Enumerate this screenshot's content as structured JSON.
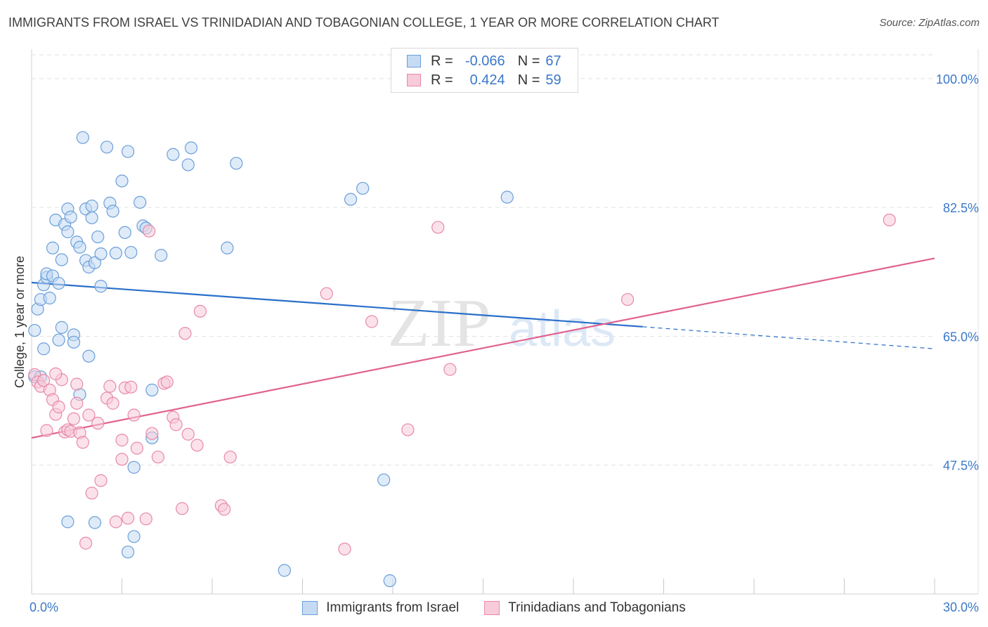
{
  "title": "IMMIGRANTS FROM ISRAEL VS TRINIDADIAN AND TOBAGONIAN COLLEGE, 1 YEAR OR MORE CORRELATION CHART",
  "source": "Source: ZipAtlas.com",
  "watermark": {
    "zip": "ZIP",
    "atlas": "atlas"
  },
  "colors": {
    "blue": "#6b9fd8",
    "blue_fill": "#c5dbf4",
    "blue_line": "#2a6fc9",
    "pink": "#e889a8",
    "pink_fill": "#f7cbd9",
    "pink_line": "#e0628f",
    "tick_label": "#3b78c8",
    "grid": "#e2e2e2"
  },
  "legend_top": [
    {
      "r_label": "R =",
      "r_value": "-0.066",
      "n_label": "N =",
      "n_value": "67"
    },
    {
      "r_label": "R =",
      "r_value": "0.424",
      "n_label": "N =",
      "n_value": "59"
    }
  ],
  "chart_data": {
    "type": "scatter",
    "title": "IMMIGRANTS FROM ISRAEL VS TRINIDADIAN AND TOBAGONIAN COLLEGE, 1 YEAR OR MORE CORRELATION CHART",
    "xlabel": "",
    "ylabel": "College, 1 year or more",
    "xlim": [
      0,
      30
    ],
    "ylim": [
      30,
      104
    ],
    "x_tick_labels": [
      {
        "value": 0,
        "label": "0.0%"
      },
      {
        "value": 30,
        "label": "30.0%"
      }
    ],
    "y_tick_labels": [
      {
        "value": 100,
        "label": "100.0%"
      },
      {
        "value": 82.5,
        "label": "82.5%"
      },
      {
        "value": 65,
        "label": "65.0%"
      },
      {
        "value": 47.5,
        "label": "47.5%"
      }
    ],
    "x_minor_ticks": [
      0,
      3,
      6,
      9,
      12,
      15,
      18,
      21,
      24,
      27,
      30
    ],
    "grid": true,
    "legend_position": "bottom",
    "series": [
      {
        "name": "Immigrants from Israel",
        "color": "#6b9fd8",
        "trend": {
          "x": [
            0,
            20.3
          ],
          "y": [
            72.3,
            66.3
          ],
          "extend_to": 30,
          "extend_y": 63.3
        },
        "points": [
          [
            0.1,
            59.5
          ],
          [
            0.1,
            65.8
          ],
          [
            0.2,
            68.7
          ],
          [
            0.3,
            70.0
          ],
          [
            0.4,
            63.3
          ],
          [
            0.4,
            72.0
          ],
          [
            0.5,
            73.0
          ],
          [
            0.5,
            73.5
          ],
          [
            0.6,
            70.2
          ],
          [
            0.7,
            73.2
          ],
          [
            0.7,
            77.0
          ],
          [
            0.8,
            80.8
          ],
          [
            0.9,
            72.2
          ],
          [
            0.9,
            64.5
          ],
          [
            1.0,
            66.2
          ],
          [
            1.0,
            75.4
          ],
          [
            1.1,
            80.2
          ],
          [
            1.2,
            79.2
          ],
          [
            1.2,
            82.3
          ],
          [
            1.3,
            81.2
          ],
          [
            1.4,
            65.2
          ],
          [
            1.4,
            64.2
          ],
          [
            1.5,
            77.8
          ],
          [
            1.6,
            77.1
          ],
          [
            1.6,
            57.1
          ],
          [
            1.7,
            92.0
          ],
          [
            1.8,
            82.3
          ],
          [
            1.8,
            75.3
          ],
          [
            1.9,
            74.4
          ],
          [
            1.9,
            62.3
          ],
          [
            2.0,
            81.1
          ],
          [
            2.0,
            82.7
          ],
          [
            2.1,
            75.0
          ],
          [
            2.2,
            78.5
          ],
          [
            2.3,
            76.2
          ],
          [
            2.3,
            71.8
          ],
          [
            2.5,
            90.7
          ],
          [
            2.6,
            83.1
          ],
          [
            2.7,
            82.0
          ],
          [
            2.8,
            76.3
          ],
          [
            3.0,
            86.1
          ],
          [
            3.1,
            79.1
          ],
          [
            3.2,
            90.1
          ],
          [
            3.3,
            76.4
          ],
          [
            3.6,
            83.2
          ],
          [
            3.7,
            80.0
          ],
          [
            3.8,
            79.7
          ],
          [
            4.0,
            57.7
          ],
          [
            4.0,
            51.2
          ],
          [
            4.3,
            76.0
          ],
          [
            4.7,
            89.7
          ],
          [
            5.2,
            88.3
          ],
          [
            5.3,
            90.6
          ],
          [
            6.5,
            77.0
          ],
          [
            6.8,
            88.5
          ],
          [
            10.6,
            83.6
          ],
          [
            11.0,
            85.1
          ],
          [
            15.8,
            83.9
          ],
          [
            3.4,
            47.2
          ],
          [
            11.7,
            45.5
          ],
          [
            1.2,
            39.8
          ],
          [
            2.1,
            39.7
          ],
          [
            3.4,
            37.8
          ],
          [
            3.2,
            35.7
          ],
          [
            8.4,
            33.2
          ],
          [
            11.9,
            31.8
          ],
          [
            0.3,
            59.5
          ]
        ]
      },
      {
        "name": "Trinidadians and Tobagonians",
        "color": "#e889a8",
        "trend": {
          "x": [
            0,
            30
          ],
          "y": [
            51.2,
            75.6
          ]
        },
        "points": [
          [
            0.1,
            59.8
          ],
          [
            0.2,
            58.8
          ],
          [
            0.3,
            58.2
          ],
          [
            0.4,
            59.0
          ],
          [
            0.5,
            52.2
          ],
          [
            0.6,
            57.7
          ],
          [
            0.7,
            56.4
          ],
          [
            0.8,
            54.4
          ],
          [
            0.9,
            55.4
          ],
          [
            1.0,
            59.1
          ],
          [
            1.1,
            52.0
          ],
          [
            1.2,
            52.3
          ],
          [
            1.3,
            52.1
          ],
          [
            1.4,
            53.8
          ],
          [
            1.5,
            55.9
          ],
          [
            1.6,
            51.9
          ],
          [
            1.7,
            50.6
          ],
          [
            1.8,
            36.9
          ],
          [
            1.9,
            54.3
          ],
          [
            2.0,
            43.7
          ],
          [
            2.2,
            53.2
          ],
          [
            2.3,
            45.4
          ],
          [
            2.5,
            56.6
          ],
          [
            2.6,
            58.2
          ],
          [
            2.7,
            55.9
          ],
          [
            2.8,
            39.8
          ],
          [
            3.0,
            48.3
          ],
          [
            3.0,
            50.9
          ],
          [
            3.1,
            58.0
          ],
          [
            3.2,
            40.3
          ],
          [
            3.3,
            58.1
          ],
          [
            3.4,
            54.3
          ],
          [
            3.5,
            49.8
          ],
          [
            3.8,
            40.2
          ],
          [
            3.9,
            79.3
          ],
          [
            4.0,
            51.8
          ],
          [
            4.2,
            48.6
          ],
          [
            4.4,
            58.6
          ],
          [
            4.5,
            58.8
          ],
          [
            4.7,
            54.0
          ],
          [
            4.8,
            53.0
          ],
          [
            5.0,
            41.6
          ],
          [
            5.1,
            65.4
          ],
          [
            5.2,
            51.7
          ],
          [
            5.5,
            50.2
          ],
          [
            5.6,
            68.4
          ],
          [
            6.3,
            42.0
          ],
          [
            6.4,
            41.5
          ],
          [
            6.6,
            48.6
          ],
          [
            9.8,
            70.8
          ],
          [
            10.4,
            36.1
          ],
          [
            11.3,
            67.0
          ],
          [
            12.5,
            52.3
          ],
          [
            13.5,
            79.8
          ],
          [
            13.9,
            60.5
          ],
          [
            19.8,
            70.0
          ],
          [
            28.5,
            80.8
          ],
          [
            0.8,
            59.9
          ],
          [
            1.5,
            58.5
          ]
        ]
      }
    ]
  }
}
